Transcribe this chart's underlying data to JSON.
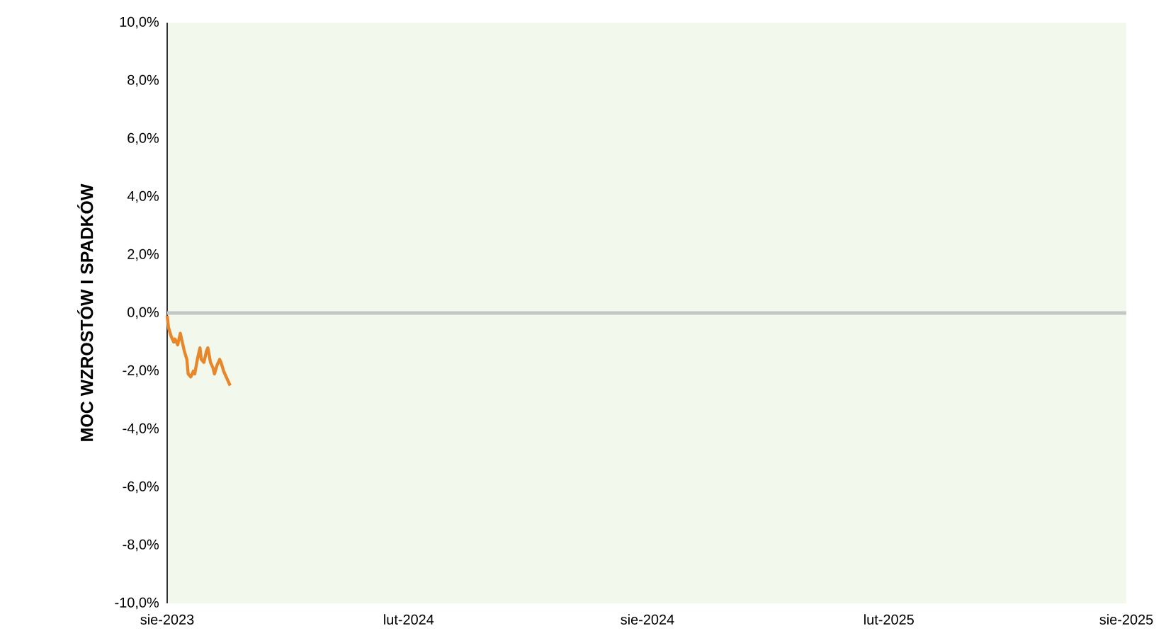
{
  "chart_data": {
    "type": "line",
    "ylabel": "MOC WZROSTÓW I SPADKÓW",
    "x": [
      "2023-08-01",
      "2023-08-02",
      "2023-08-04",
      "2023-08-06",
      "2023-08-07",
      "2023-08-09",
      "2023-08-11",
      "2023-08-12",
      "2023-08-14",
      "2023-08-16",
      "2023-08-17",
      "2023-08-19",
      "2023-08-21",
      "2023-08-22",
      "2023-08-24",
      "2023-08-26",
      "2023-08-27",
      "2023-08-29",
      "2023-08-31",
      "2023-09-01",
      "2023-09-03",
      "2023-09-05",
      "2023-09-06",
      "2023-09-08",
      "2023-09-10",
      "2023-09-11",
      "2023-09-13",
      "2023-09-15",
      "2023-09-16",
      "2023-09-18"
    ],
    "series": [
      {
        "color": "#e8872a",
        "values": [
          -0.1,
          -0.5,
          -0.8,
          -1.0,
          -0.9,
          -1.1,
          -0.7,
          -0.9,
          -1.3,
          -1.6,
          -2.1,
          -2.2,
          -2.0,
          -2.1,
          -1.6,
          -1.2,
          -1.6,
          -1.7,
          -1.3,
          -1.2,
          -1.7,
          -1.9,
          -2.1,
          -1.8,
          -1.6,
          -1.7,
          -2.0,
          -2.2,
          -2.3,
          -2.5
        ]
      }
    ],
    "xlim": [
      "2023-08-01",
      "2025-08-01"
    ],
    "xticks": [
      {
        "value": "2023-08-01",
        "label": "sie-2023"
      },
      {
        "value": "2024-02-01",
        "label": "lut-2024"
      },
      {
        "value": "2024-08-01",
        "label": "sie-2024"
      },
      {
        "value": "2025-02-01",
        "label": "lut-2025"
      },
      {
        "value": "2025-08-01",
        "label": "sie-2025"
      }
    ],
    "ylim": [
      -10,
      10
    ],
    "yticks": [
      {
        "value": -10,
        "label": "-10,0%"
      },
      {
        "value": -8,
        "label": "-8,0%"
      },
      {
        "value": -6,
        "label": "-6,0%"
      },
      {
        "value": -4,
        "label": "-4,0%"
      },
      {
        "value": -2,
        "label": "-2,0%"
      },
      {
        "value": 0,
        "label": "0,0%"
      },
      {
        "value": 2,
        "label": "2,0%"
      },
      {
        "value": 4,
        "label": "4,0%"
      },
      {
        "value": 6,
        "label": "6,0%"
      },
      {
        "value": 8,
        "label": "8,0%"
      },
      {
        "value": 10,
        "label": "10,0%"
      }
    ]
  }
}
